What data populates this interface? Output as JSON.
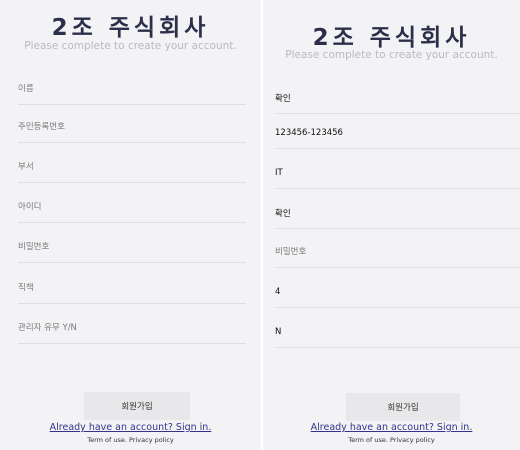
{
  "left": {
    "title": "2조 주식회사",
    "subtitle": "Please complete to create your account.",
    "fields": [
      {
        "placeholder": "이름",
        "value": ""
      },
      {
        "placeholder": "주민등록번호",
        "value": ""
      },
      {
        "placeholder": "부서",
        "value": ""
      },
      {
        "placeholder": "아이디",
        "value": ""
      },
      {
        "placeholder": "비밀번호",
        "value": ""
      },
      {
        "placeholder": "직책",
        "value": ""
      },
      {
        "placeholder": "관리자 유무 Y/N",
        "value": ""
      }
    ],
    "signup_label": "회원가입",
    "signin_link": "Already have an account? Sign in.",
    "footer": "Term of use. Privacy policy"
  },
  "right": {
    "title": "2조 주식회사",
    "subtitle": "Please complete to create your account.",
    "fields": [
      {
        "placeholder": "이름",
        "value": "확인"
      },
      {
        "placeholder": "주민등록번호",
        "value": "123456-123456"
      },
      {
        "placeholder": "부서",
        "value": "IT"
      },
      {
        "placeholder": "아이디",
        "value": "확인"
      },
      {
        "placeholder": "비밀번호",
        "value": ""
      },
      {
        "placeholder": "직책",
        "value": "4"
      },
      {
        "placeholder": "관리자 유무 Y/N",
        "value": "N"
      }
    ],
    "signup_label": "회원가입",
    "signin_link": "Already have an account? Sign in.",
    "footer": "Term of use. Privacy policy"
  }
}
